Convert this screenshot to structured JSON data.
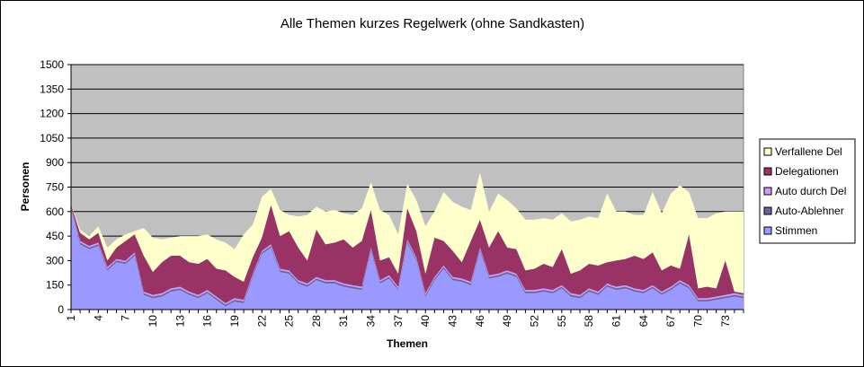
{
  "chart_data": {
    "type": "stacked-area",
    "title": "Alle Themen kurzes Regelwerk (ohne Sandkasten)",
    "x_label": "Themen",
    "y_label": "Personen",
    "categories": [
      "1",
      null,
      null,
      "4",
      null,
      null,
      "7",
      null,
      null,
      "10",
      null,
      null,
      "13",
      null,
      null,
      "16",
      null,
      null,
      "19",
      null,
      null,
      "22",
      null,
      null,
      "25",
      null,
      null,
      "28",
      null,
      null,
      "31",
      null,
      null,
      "34",
      null,
      null,
      "37",
      null,
      null,
      "40",
      null,
      null,
      "43",
      null,
      null,
      "46",
      null,
      null,
      "49",
      null,
      null,
      "52",
      null,
      null,
      "55",
      null,
      null,
      "58",
      null,
      null,
      "61",
      null,
      null,
      "64",
      null,
      null,
      "67",
      null,
      null,
      "70",
      null,
      null,
      "73",
      null,
      null
    ],
    "series": [
      {
        "name": "Stimmen",
        "color": "#9999ff",
        "values": [
          620,
          400,
          370,
          390,
          240,
          290,
          280,
          330,
          90,
          70,
          80,
          110,
          120,
          90,
          70,
          100,
          60,
          20,
          50,
          40,
          200,
          340,
          380,
          230,
          220,
          160,
          140,
          180,
          160,
          160,
          140,
          130,
          120,
          360,
          160,
          190,
          120,
          410,
          300,
          80,
          180,
          250,
          180,
          170,
          150,
          360,
          190,
          200,
          220,
          200,
          100,
          100,
          110,
          100,
          130,
          80,
          70,
          110,
          90,
          140,
          120,
          130,
          110,
          100,
          130,
          90,
          120,
          160,
          130,
          50,
          50,
          60,
          70,
          80,
          70
        ]
      },
      {
        "name": "Auto-Ablehner",
        "color": "#666699",
        "values": [
          5,
          10,
          10,
          10,
          10,
          10,
          10,
          10,
          10,
          10,
          10,
          10,
          10,
          10,
          10,
          10,
          10,
          10,
          10,
          10,
          10,
          10,
          10,
          10,
          10,
          10,
          10,
          10,
          10,
          10,
          10,
          10,
          10,
          10,
          10,
          10,
          10,
          10,
          10,
          10,
          10,
          10,
          10,
          10,
          10,
          10,
          10,
          10,
          10,
          10,
          10,
          10,
          10,
          10,
          10,
          10,
          10,
          10,
          10,
          10,
          10,
          10,
          10,
          10,
          10,
          10,
          10,
          10,
          10,
          10,
          10,
          10,
          10,
          10,
          10
        ]
      },
      {
        "name": "Auto durch Del",
        "color": "#cc99ff",
        "values": [
          5,
          10,
          10,
          10,
          10,
          10,
          10,
          10,
          10,
          10,
          10,
          10,
          10,
          10,
          10,
          10,
          10,
          10,
          10,
          10,
          10,
          10,
          10,
          10,
          10,
          10,
          10,
          10,
          10,
          10,
          10,
          10,
          10,
          10,
          10,
          10,
          10,
          10,
          10,
          10,
          10,
          10,
          10,
          10,
          10,
          10,
          10,
          10,
          10,
          10,
          10,
          10,
          10,
          10,
          10,
          10,
          10,
          10,
          10,
          10,
          10,
          10,
          10,
          10,
          10,
          10,
          10,
          10,
          10,
          10,
          10,
          10,
          10,
          10,
          10
        ]
      },
      {
        "name": "Delegationen",
        "color": "#993366",
        "values": [
          10,
          50,
          40,
          60,
          40,
          70,
          120,
          110,
          220,
          140,
          190,
          200,
          190,
          180,
          190,
          190,
          170,
          200,
          130,
          110,
          100,
          80,
          240,
          200,
          240,
          200,
          140,
          290,
          220,
          230,
          270,
          230,
          280,
          230,
          120,
          110,
          80,
          190,
          160,
          120,
          240,
          150,
          160,
          100,
          250,
          170,
          170,
          260,
          140,
          150,
          120,
          130,
          150,
          140,
          220,
          120,
          150,
          150,
          160,
          130,
          160,
          160,
          200,
          190,
          200,
          130,
          130,
          70,
          310,
          60,
          70,
          50,
          210,
          10,
          10
        ]
      },
      {
        "name": "Verfallene Del",
        "color": "#ffffcc",
        "values": [
          0,
          20,
          20,
          40,
          80,
          50,
          40,
          20,
          170,
          210,
          140,
          110,
          120,
          160,
          170,
          150,
          180,
          170,
          170,
          290,
          200,
          250,
          100,
          160,
          100,
          190,
          280,
          140,
          200,
          200,
          160,
          200,
          200,
          170,
          310,
          260,
          240,
          150,
          190,
          290,
          160,
          300,
          300,
          340,
          190,
          290,
          220,
          230,
          290,
          250,
          310,
          300,
          280,
          290,
          220,
          320,
          310,
          290,
          290,
          420,
          300,
          290,
          250,
          270,
          370,
          350,
          440,
          510,
          260,
          430,
          420,
          460,
          300,
          490,
          500
        ]
      }
    ],
    "ylim": [
      0,
      1500
    ],
    "yticks": [
      0,
      150,
      300,
      450,
      600,
      750,
      900,
      1050,
      1200,
      1350,
      1500
    ],
    "grid": true,
    "legend": "right",
    "plot_background": "#c0c0c0"
  }
}
